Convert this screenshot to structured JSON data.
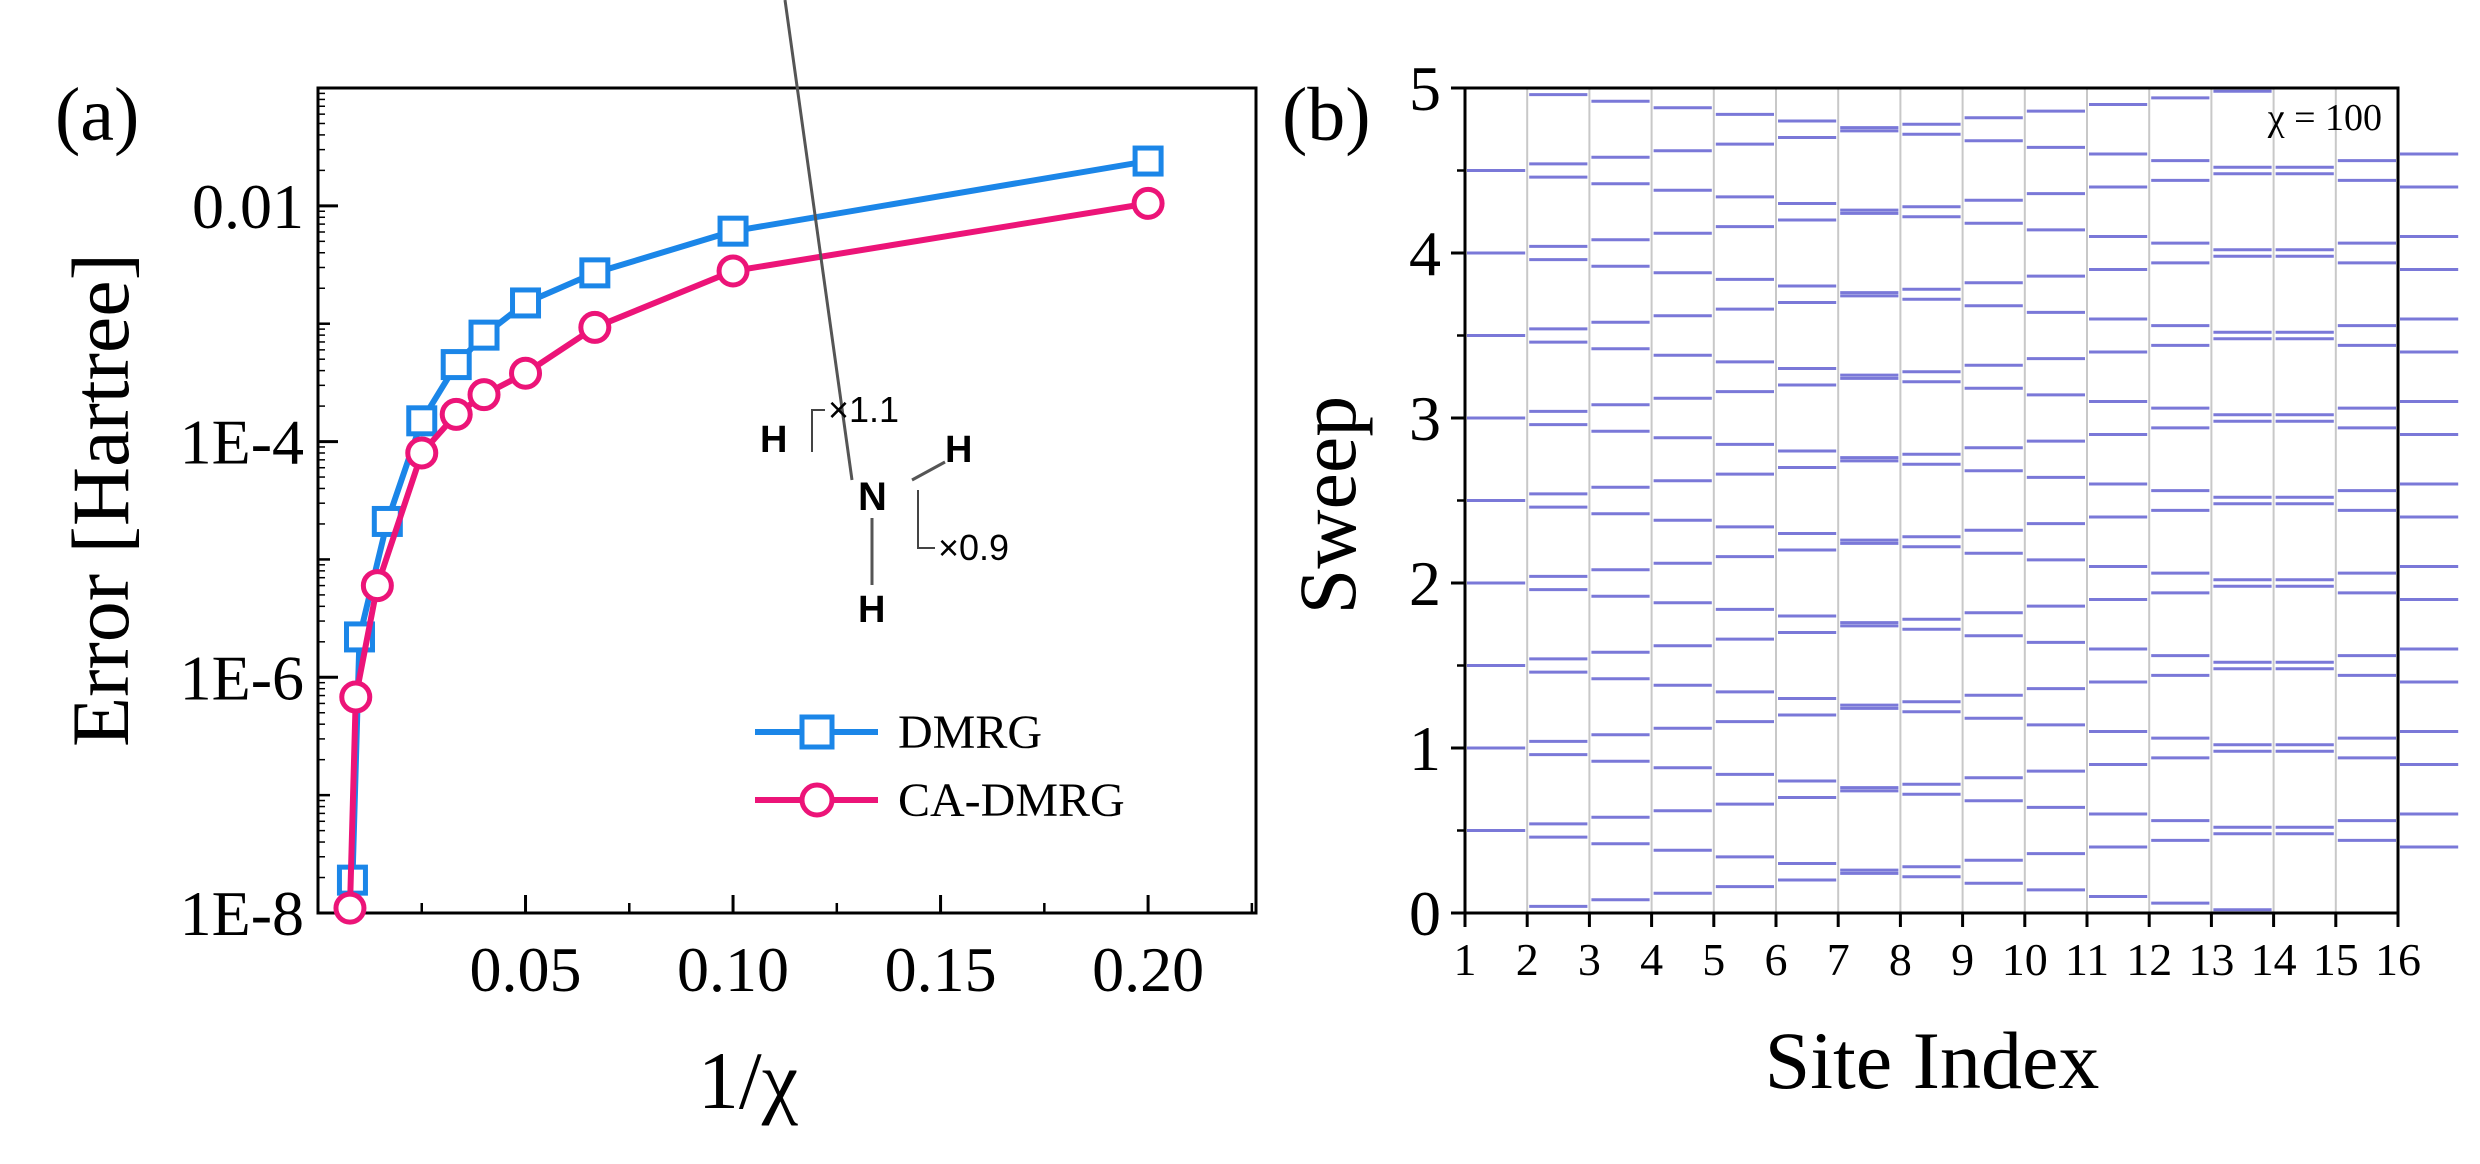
{
  "chart_data": [
    {
      "panel_label": "(a)",
      "type": "line",
      "xlabel": "1/χ",
      "ylabel": "Error [Hartree]",
      "yscale": "log",
      "xlim": [
        0.0,
        0.226
      ],
      "ylim": [
        1e-08,
        0.1
      ],
      "x_ticks": [
        0.05,
        0.1,
        0.15,
        0.2
      ],
      "x_tick_labels": [
        "0.05",
        "0.10",
        "0.15",
        "0.20"
      ],
      "y_ticks": [
        1e-08,
        1e-06,
        0.0001,
        0.01
      ],
      "y_tick_labels": [
        "1E-8",
        "1E-6",
        "1E-4",
        "0.01"
      ],
      "grid": false,
      "legend_position": "bottom-right",
      "series": [
        {
          "name": "DMRG",
          "color": "#1b86e8",
          "marker": "square",
          "x": [
            0.0083,
            0.01,
            0.0167,
            0.025,
            0.0333,
            0.04,
            0.05,
            0.0667,
            0.1,
            0.2
          ],
          "y": [
            1.9e-08,
            2.2e-06,
            2.1e-05,
            0.00015,
            0.00045,
            0.0008,
            0.0015,
            0.0027,
            0.0061,
            0.024
          ]
        },
        {
          "name": "CA-DMRG",
          "color": "#ec1478",
          "marker": "circle",
          "x": [
            0.0077,
            0.0091,
            0.0143,
            0.025,
            0.0333,
            0.04,
            0.05,
            0.0667,
            0.1,
            0.2
          ],
          "y": [
            1.1e-08,
            6.8e-07,
            6e-06,
            8e-05,
            0.00017,
            0.00025,
            0.00038,
            0.00093,
            0.0028,
            0.0105
          ]
        }
      ],
      "inset": {
        "atoms": [
          "H",
          "N",
          "H",
          "H"
        ],
        "scale_labels": [
          "×1.1",
          "×0.9"
        ],
        "colors": {
          "N": "#1a1aff",
          "H": "#6e8c8c",
          "bond": "#555555"
        }
      }
    },
    {
      "panel_label": "(b)",
      "type": "heatmap",
      "xlabel": "Site Index",
      "ylabel": "Sweep",
      "annotation": "χ = 100",
      "xlim": [
        1,
        16
      ],
      "ylim": [
        0,
        5
      ],
      "x_ticks": [
        1,
        2,
        3,
        4,
        5,
        6,
        7,
        8,
        9,
        10,
        11,
        12,
        13,
        14,
        15,
        16
      ],
      "y_ticks": [
        0,
        1,
        2,
        3,
        4,
        5
      ],
      "grid": "vertical",
      "colors": {
        "normal": "#7a78d8",
        "yellow": "#f0dc32",
        "magenta": "#e4287a",
        "grid": "#c8c8c8"
      },
      "base_pattern": "each site column has a step line at sweep positions k/2 ± 0.04·(site-1)",
      "highlighted": [
        {
          "site": 7,
          "sweep": 0.79,
          "color": "magenta"
        },
        {
          "site": 7,
          "sweep": 1.79,
          "color": "magenta"
        },
        {
          "site": 7,
          "sweep": 2.79,
          "color": "magenta"
        },
        {
          "site": 7,
          "sweep": 3.21,
          "color": "yellow"
        },
        {
          "site": 7,
          "sweep": 3.79,
          "color": "yellow"
        },
        {
          "site": 8,
          "sweep": 1.25,
          "color": "magenta"
        },
        {
          "site": 8,
          "sweep": 1.75,
          "color": "magenta"
        },
        {
          "site": 8,
          "sweep": 2.75,
          "color": "magenta"
        },
        {
          "site": 8,
          "sweep": 3.25,
          "color": "yellow"
        },
        {
          "site": 8,
          "sweep": 4.25,
          "color": "yellow"
        },
        {
          "site": 9,
          "sweep": 0.29,
          "color": "yellow"
        },
        {
          "site": 9,
          "sweep": 0.71,
          "color": "yellow"
        },
        {
          "site": 9,
          "sweep": 1.29,
          "color": "magenta"
        },
        {
          "site": 9,
          "sweep": 1.71,
          "color": "magenta"
        },
        {
          "site": 9,
          "sweep": 2.29,
          "color": "yellow"
        }
      ]
    }
  ]
}
